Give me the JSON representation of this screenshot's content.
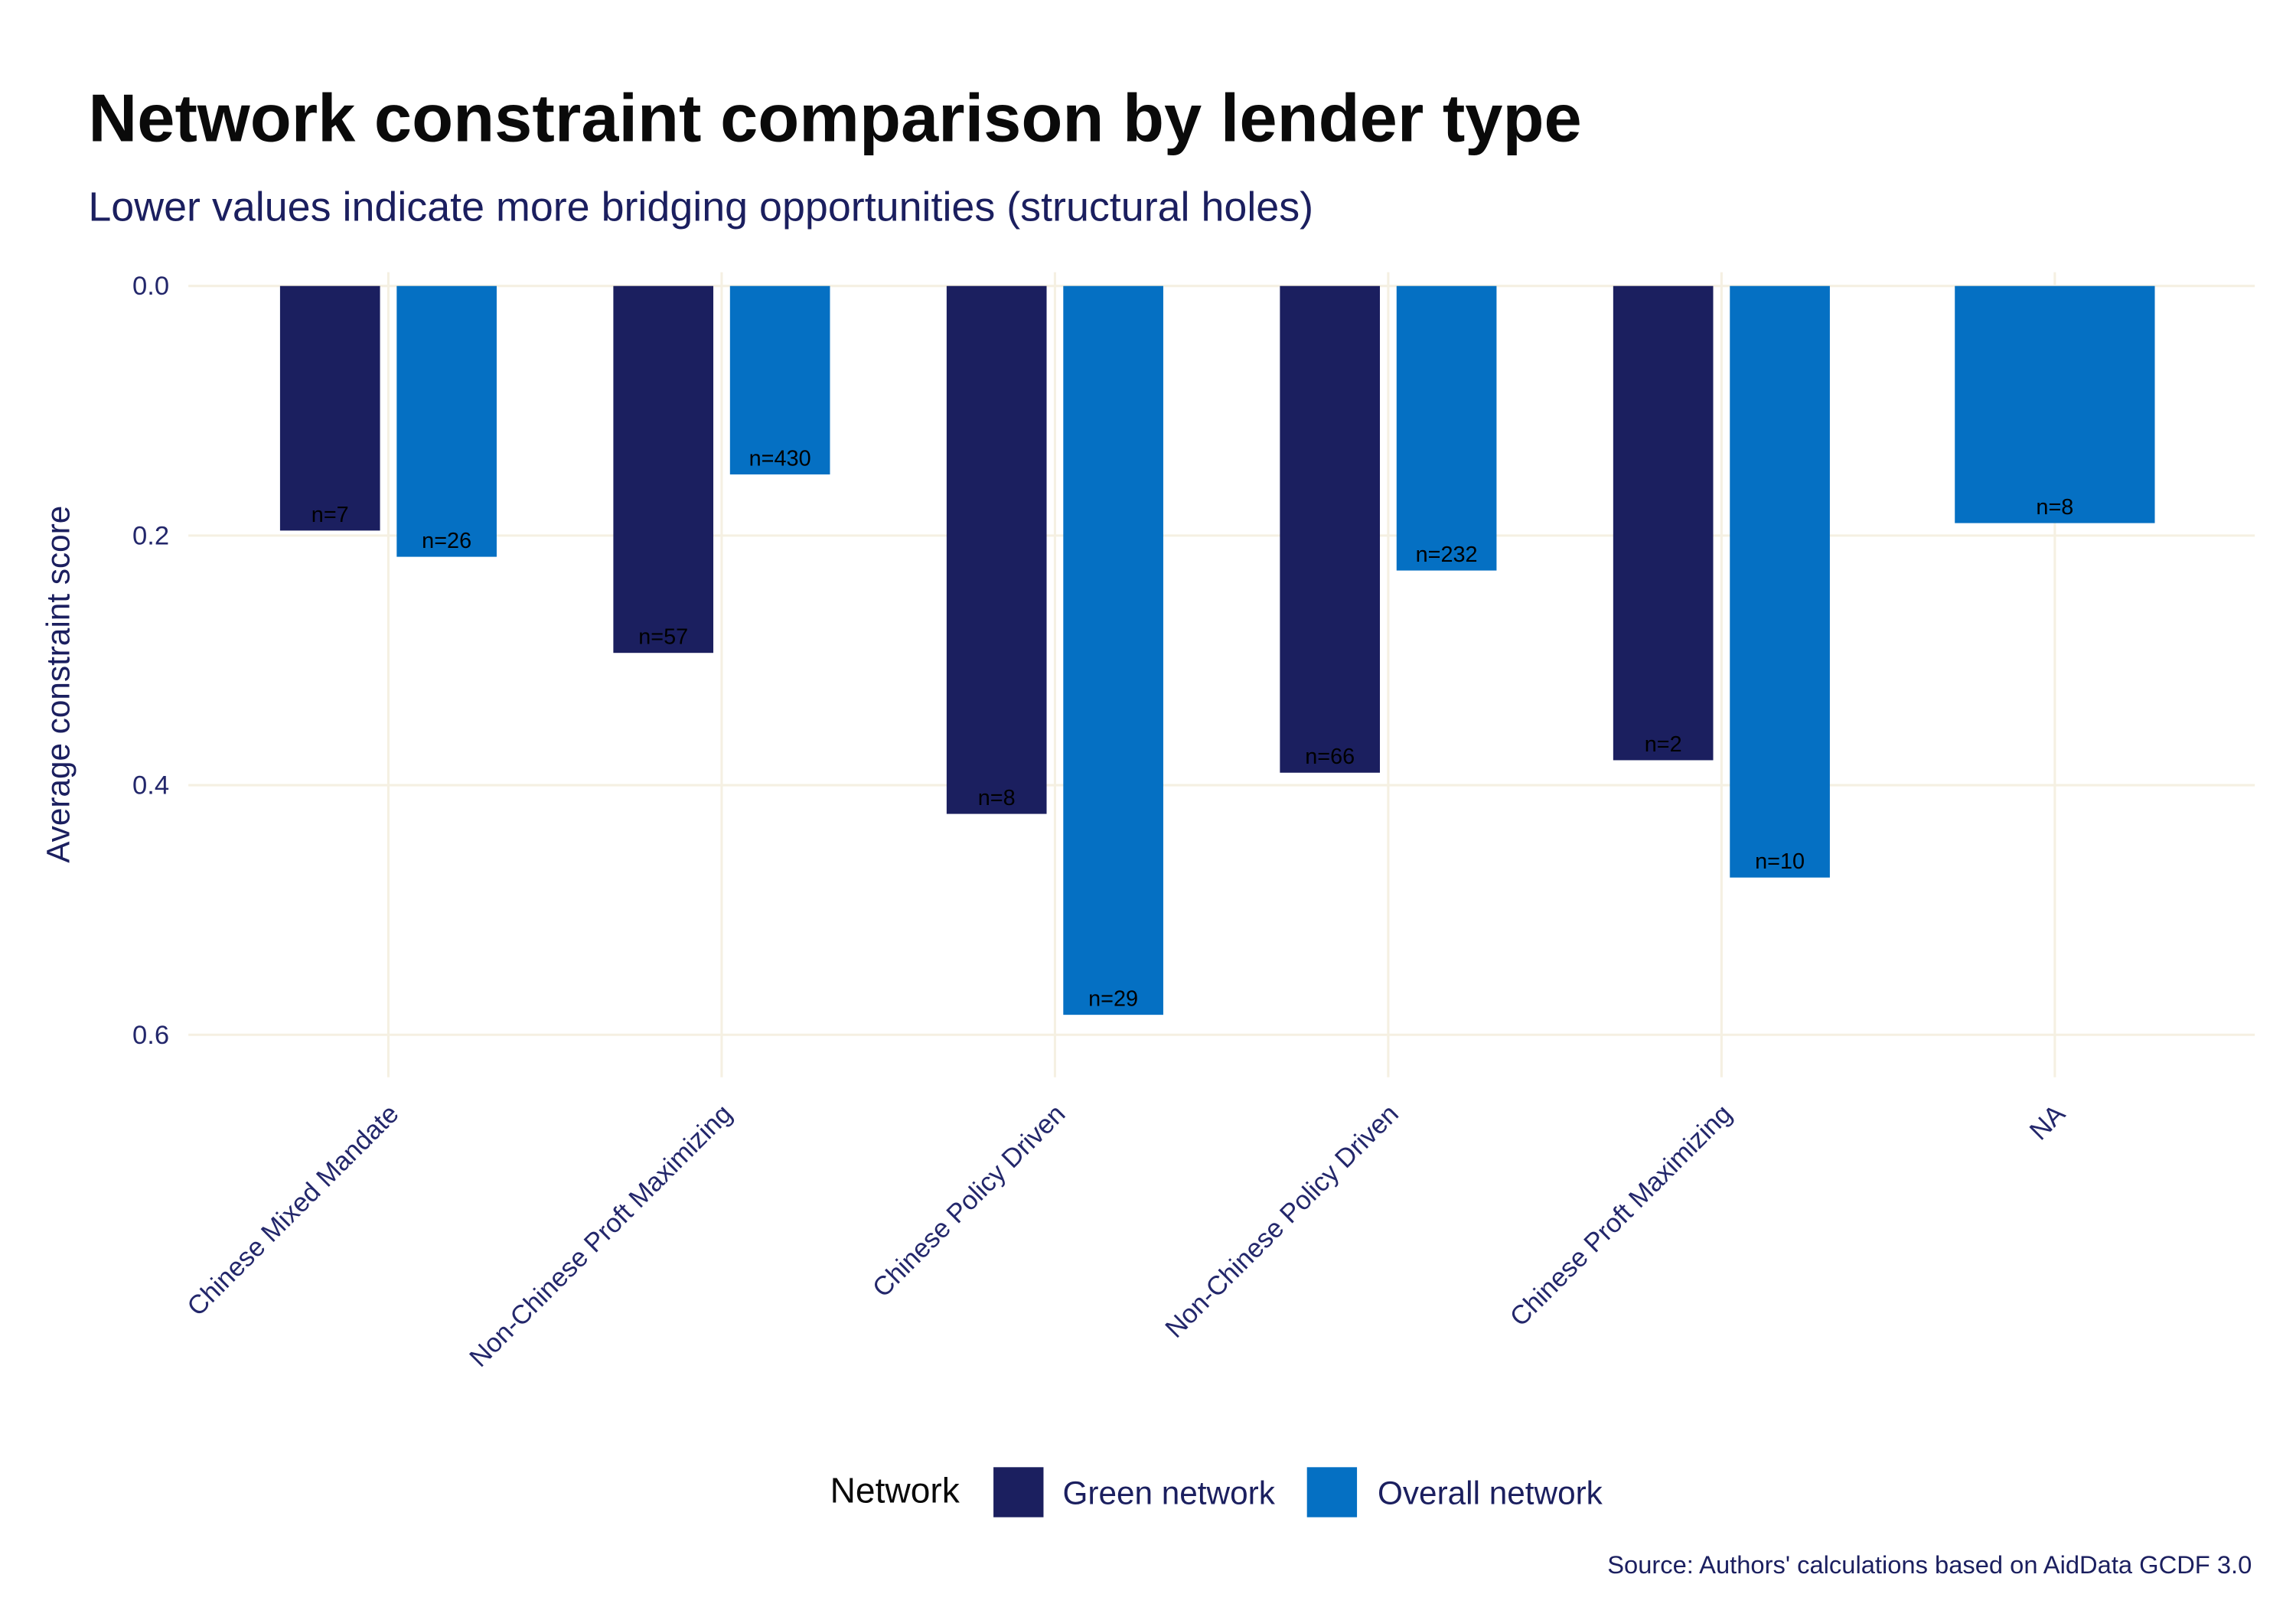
{
  "chart_data": {
    "type": "bar",
    "title": "Network constraint comparison by lender type",
    "subtitle": "Lower values indicate more bridging opportunities (structural holes)",
    "caption": "Source: Authors' calculations based on AidData GCDF 3.0",
    "ylabel": "Average constraint score",
    "y_reversed": true,
    "ylim": [
      0,
      0.6
    ],
    "yticks": [
      0.0,
      0.2,
      0.4,
      0.6
    ],
    "ytick_labels": [
      "0.0",
      "0.2",
      "0.4",
      "0.6"
    ],
    "grid": true,
    "legend_title": "Network",
    "legend_position": "bottom",
    "categories": [
      "Chinese Mixed Mandate",
      "Non-Chinese Proft Maximizing",
      "Chinese Policy Driven",
      "Non-Chinese Policy Driven",
      "Chinese Proft Maximizing",
      "NA"
    ],
    "series": [
      {
        "name": "Green network",
        "color": "#1b1f5f",
        "values": [
          0.196,
          0.294,
          0.423,
          0.39,
          0.38,
          null
        ],
        "labels": [
          "n=7",
          "n=57",
          "n=8",
          "n=66",
          "n=2",
          null
        ]
      },
      {
        "name": "Overall network",
        "color": "#0570c3",
        "values": [
          0.217,
          0.151,
          0.584,
          0.228,
          0.474,
          0.19
        ],
        "labels": [
          "n=26",
          "n=430",
          "n=29",
          "n=232",
          "n=10",
          "n=8"
        ]
      }
    ]
  }
}
